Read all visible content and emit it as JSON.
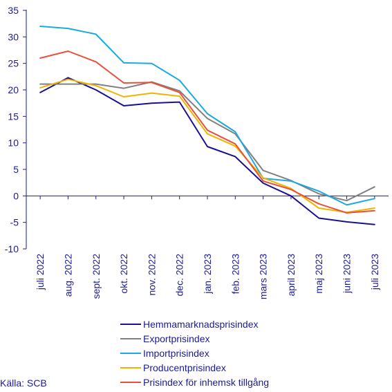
{
  "chart_data": {
    "type": "line",
    "categories": [
      "juli 2022",
      "aug. 2022",
      "sept. 2022",
      "okt. 2022",
      "nov. 2022",
      "dec. 2022",
      "jan. 2023",
      "feb. 2023",
      "mars 2023",
      "april 2023",
      "maj 2023",
      "juni 2023",
      "juli 2023"
    ],
    "y_ticks": [
      "35",
      "30",
      "25",
      "20",
      "15",
      "10",
      "5",
      "0",
      "-5",
      "-10"
    ],
    "ylim": [
      -10,
      35
    ],
    "grid": false,
    "legend_placement": "bottom",
    "series": [
      {
        "name": "Hemmamarknadsprisindex",
        "color": "#1a0f91",
        "values": [
          19.5,
          22.3,
          20.0,
          17.0,
          17.5,
          17.7,
          9.3,
          7.4,
          2.4,
          0.0,
          -4.2,
          -4.9,
          -5.4
        ]
      },
      {
        "name": "Exportprisindex",
        "color": "#808080",
        "values": [
          21.1,
          21.1,
          21.1,
          20.3,
          21.5,
          19.8,
          14.6,
          11.7,
          4.8,
          2.9,
          0.4,
          -0.9,
          1.7
        ]
      },
      {
        "name": "Importprisindex",
        "color": "#1aa9e0",
        "values": [
          32.0,
          31.6,
          30.5,
          25.1,
          25.0,
          21.8,
          15.5,
          12.1,
          3.3,
          2.8,
          0.9,
          -1.7,
          -0.5
        ]
      },
      {
        "name": "Producentprisindex",
        "color": "#f0b400",
        "values": [
          20.4,
          22.0,
          20.8,
          18.7,
          19.4,
          18.8,
          11.7,
          9.4,
          3.4,
          1.4,
          -2.3,
          -3.1,
          -2.3
        ]
      },
      {
        "name": "Prisindex för inhemsk tillgång",
        "color": "#e8503a",
        "values": [
          26.0,
          27.3,
          25.3,
          21.3,
          21.4,
          19.5,
          12.4,
          9.8,
          2.8,
          1.2,
          -1.5,
          -3.2,
          -2.8
        ]
      }
    ]
  },
  "source": "Källa: SCB",
  "colors": {
    "text": "#1a1a99",
    "axis": "#1a1a99"
  }
}
